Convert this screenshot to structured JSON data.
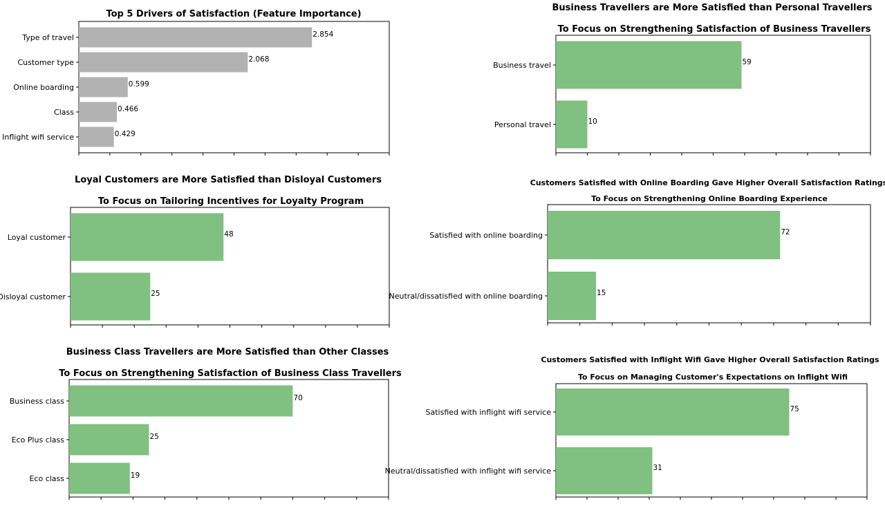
{
  "chart_data": [
    {
      "type": "bar",
      "orientation": "horizontal",
      "title": "Top 5 Drivers of Satisfaction (Feature Importance)",
      "subtitle": "",
      "categories": [
        "Type of travel",
        "Customer type",
        "Online boarding",
        "Class",
        "Inflight wifi service"
      ],
      "values": [
        2.854,
        2.068,
        0.599,
        0.466,
        0.429
      ],
      "value_labels": [
        "2.854",
        "2.068",
        "0.599",
        "0.466",
        "0.429"
      ],
      "xlim": [
        0,
        3.8
      ],
      "bar_color": "#b2b2b2",
      "grid": false
    },
    {
      "type": "bar",
      "orientation": "horizontal",
      "title": "Business Travellers are More Satisfied than Personal Travellers",
      "subtitle": "To Focus on Strengthening Satisfaction of Business Travellers",
      "categories": [
        "Business travel",
        "Personal travel"
      ],
      "values": [
        59,
        10
      ],
      "value_labels": [
        "59",
        "10"
      ],
      "xlim": [
        0,
        100
      ],
      "bar_color": "#80c080",
      "grid": false
    },
    {
      "type": "bar",
      "orientation": "horizontal",
      "title": "Loyal Customers are More Satisfied than Disloyal Customers",
      "subtitle": "To Focus on Tailoring Incentives for Loyalty Program",
      "categories": [
        "Loyal customer",
        "Disloyal customer"
      ],
      "values": [
        48,
        25
      ],
      "value_labels": [
        "48",
        "25"
      ],
      "xlim": [
        0,
        100
      ],
      "bar_color": "#80c080",
      "grid": false
    },
    {
      "type": "bar",
      "orientation": "horizontal",
      "title": "Customers Satisfied with Online Boarding Gave Higher Overall Satisfaction Ratings",
      "subtitle": "To Focus on Strengthening Online Boarding Experience",
      "categories": [
        "Satisfied with online boarding",
        "Neutral/dissatisfied with online boarding"
      ],
      "values": [
        72,
        15
      ],
      "value_labels": [
        "72",
        "15"
      ],
      "xlim": [
        0,
        100
      ],
      "bar_color": "#80c080",
      "grid": false
    },
    {
      "type": "bar",
      "orientation": "horizontal",
      "title": "Business Class Travellers are More Satisfied than Other Classes",
      "subtitle": "To Focus on Strengthening Satisfaction of Business Class Travellers",
      "categories": [
        "Business class",
        "Eco Plus class",
        "Eco class"
      ],
      "values": [
        70,
        25,
        19
      ],
      "value_labels": [
        "70",
        "25",
        "19"
      ],
      "xlim": [
        0,
        100
      ],
      "bar_color": "#80c080",
      "grid": false
    },
    {
      "type": "bar",
      "orientation": "horizontal",
      "title": "Customers Satisfied with Inflight Wifi Gave Higher Overall Satisfaction Ratings",
      "subtitle": "To Focus on Managing Customer's Expectations on Inflight Wifi",
      "categories": [
        "Satisfied with inflight wifi service",
        "Neutral/dissatisfied with inflight wifi service"
      ],
      "values": [
        75,
        31
      ],
      "value_labels": [
        "75",
        "31"
      ],
      "xlim": [
        0,
        100
      ],
      "bar_color": "#80c080",
      "grid": false
    }
  ]
}
